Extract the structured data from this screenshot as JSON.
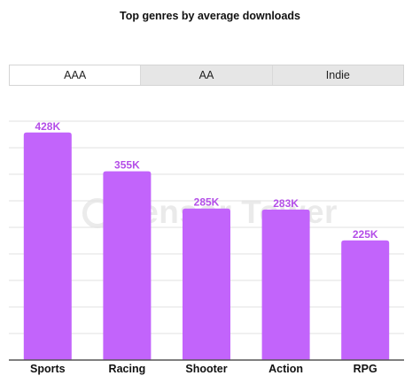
{
  "tabs": [
    {
      "label": "AAA",
      "active": true
    },
    {
      "label": "AA",
      "active": false
    },
    {
      "label": "Indie",
      "active": false
    }
  ],
  "watermark": "Sensor Tower",
  "colors": {
    "bar": "#c264fb",
    "value_label": "#b44ee8",
    "grid": "#e2e2e2",
    "axis": "#555555"
  },
  "chart_data": {
    "type": "bar",
    "title": "Top genres by average downloads",
    "categories": [
      "Sports",
      "Racing",
      "Shooter",
      "Action",
      "RPG"
    ],
    "values": [
      428000,
      355000,
      285000,
      283000,
      225000
    ],
    "value_labels": [
      "428K",
      "355K",
      "285K",
      "283K",
      "225K"
    ],
    "ylim": [
      0,
      500000
    ],
    "grid": true,
    "legend": "none"
  }
}
